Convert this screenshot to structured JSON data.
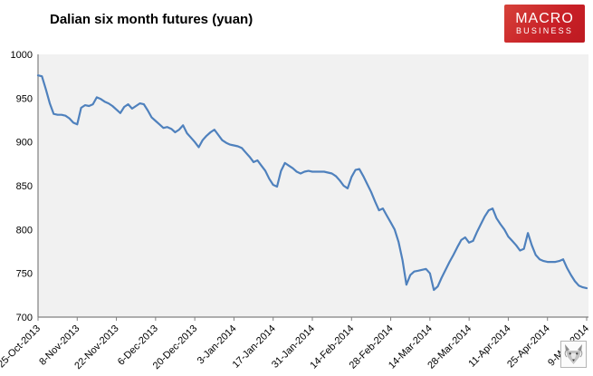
{
  "header": {
    "title": "Dalian six month futures (yuan)",
    "logo": {
      "line1": "MACRO",
      "line2": "BUSINESS",
      "bg": "#c81f26",
      "fg": "#ffffff"
    }
  },
  "watermark": {
    "name": "wolf-logo"
  },
  "chart_data": {
    "type": "line",
    "title": "Dalian six month futures (yuan)",
    "series_name": "Dalian six month futures",
    "x_tick_labels": [
      "25-Oct-2013",
      "8-Nov-2013",
      "22-Nov-2013",
      "6-Dec-2013",
      "20-Dec-2013",
      "3-Jan-2014",
      "17-Jan-2014",
      "31-Jan-2014",
      "14-Feb-2014",
      "28-Feb-2014",
      "14-Mar-2014",
      "28-Mar-2014",
      "11-Apr-2014",
      "25-Apr-2014",
      "9-May-2014"
    ],
    "points_per_tick": 10,
    "values": [
      976,
      975,
      960,
      944,
      932,
      931,
      931,
      930,
      927,
      922,
      920,
      939,
      942,
      941,
      943,
      951,
      949,
      946,
      944,
      941,
      937,
      933,
      940,
      943,
      938,
      941,
      944,
      943,
      936,
      928,
      924,
      920,
      916,
      917,
      915,
      911,
      914,
      919,
      910,
      905,
      900,
      894,
      902,
      907,
      911,
      914,
      908,
      902,
      899,
      897,
      896,
      895,
      893,
      888,
      883,
      877,
      879,
      873,
      867,
      858,
      851,
      849,
      867,
      876,
      873,
      870,
      866,
      864,
      866,
      867,
      866,
      866,
      866,
      866,
      865,
      864,
      861,
      856,
      850,
      847,
      860,
      868,
      869,
      861,
      852,
      843,
      832,
      822,
      824,
      816,
      808,
      800,
      786,
      765,
      737,
      748,
      752,
      753,
      754,
      755,
      750,
      731,
      735,
      745,
      754,
      763,
      771,
      780,
      788,
      791,
      785,
      787,
      797,
      806,
      815,
      822,
      824,
      813,
      806,
      800,
      792,
      787,
      782,
      776,
      778,
      796,
      782,
      771,
      766,
      764,
      763,
      763,
      763,
      764,
      766,
      756,
      748,
      741,
      736,
      734,
      733
    ],
    "ylim": [
      700,
      1000
    ],
    "y_ticks": [
      1000,
      950,
      900,
      850,
      800,
      750,
      700
    ],
    "xlabel": "",
    "ylabel": "",
    "grid": "off",
    "legend": "none",
    "line_color": "#4F81BD",
    "plot_bg": "#F1F1F1",
    "axis_color": "#808080",
    "tick_label_color": "#000000"
  }
}
